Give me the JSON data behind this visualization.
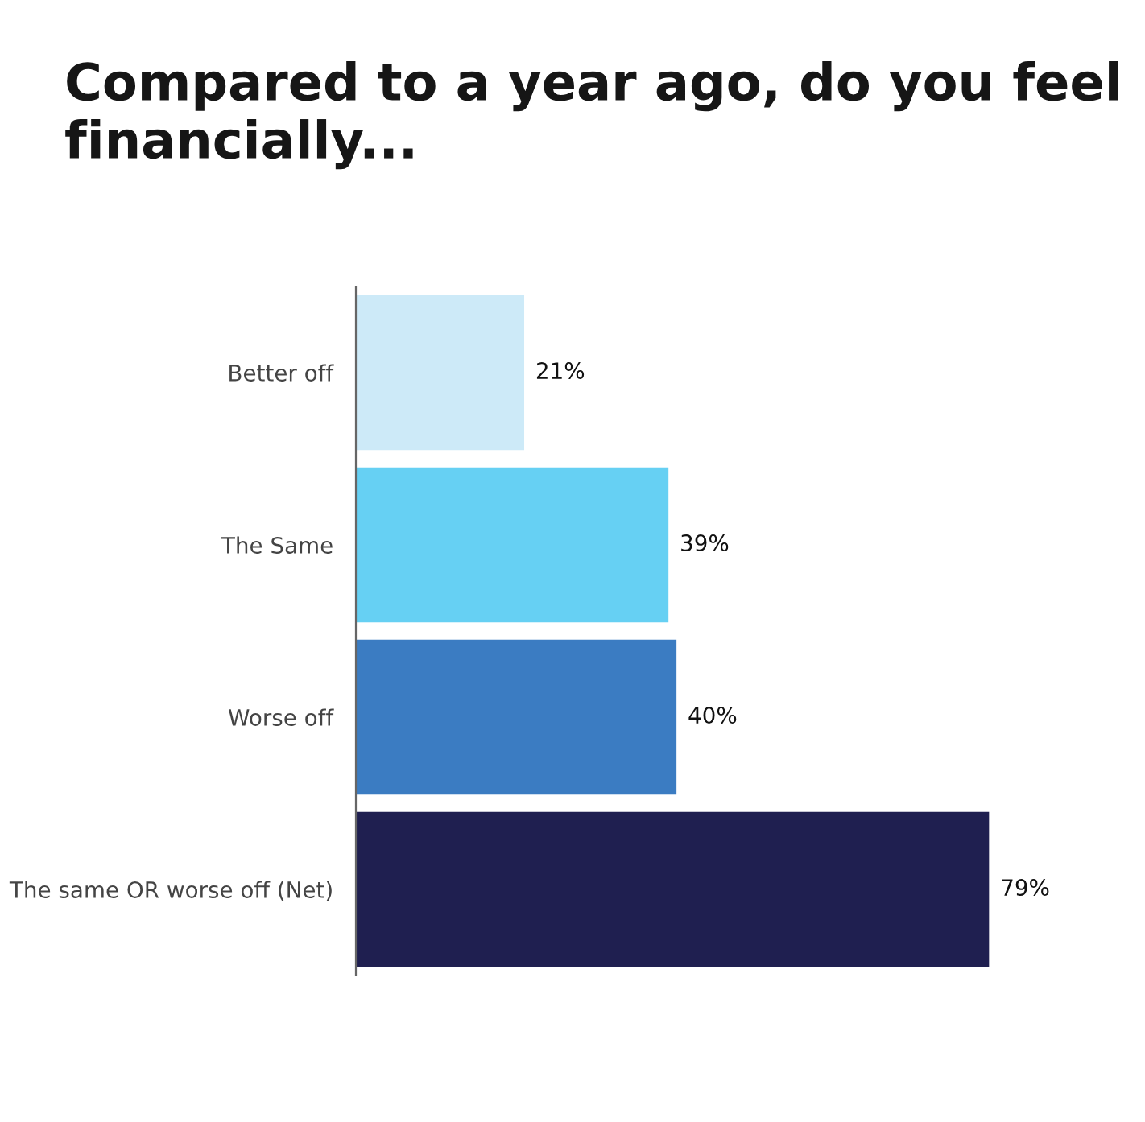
{
  "chart_data": {
    "type": "bar",
    "orientation": "horizontal",
    "title": "Compared to a year ago, do you feel financially...",
    "categories": [
      "Better off",
      "The Same",
      "Worse off",
      "The same OR worse off (Net)"
    ],
    "values": [
      21,
      39,
      40,
      79
    ],
    "colors": [
      "#cdeaf8",
      "#66d0f3",
      "#3b7cc2",
      "#1f1f50"
    ],
    "data_labels": true,
    "value_labels": [
      "21%",
      "39%",
      "40%",
      "79%"
    ],
    "grid": false,
    "legend": false
  }
}
